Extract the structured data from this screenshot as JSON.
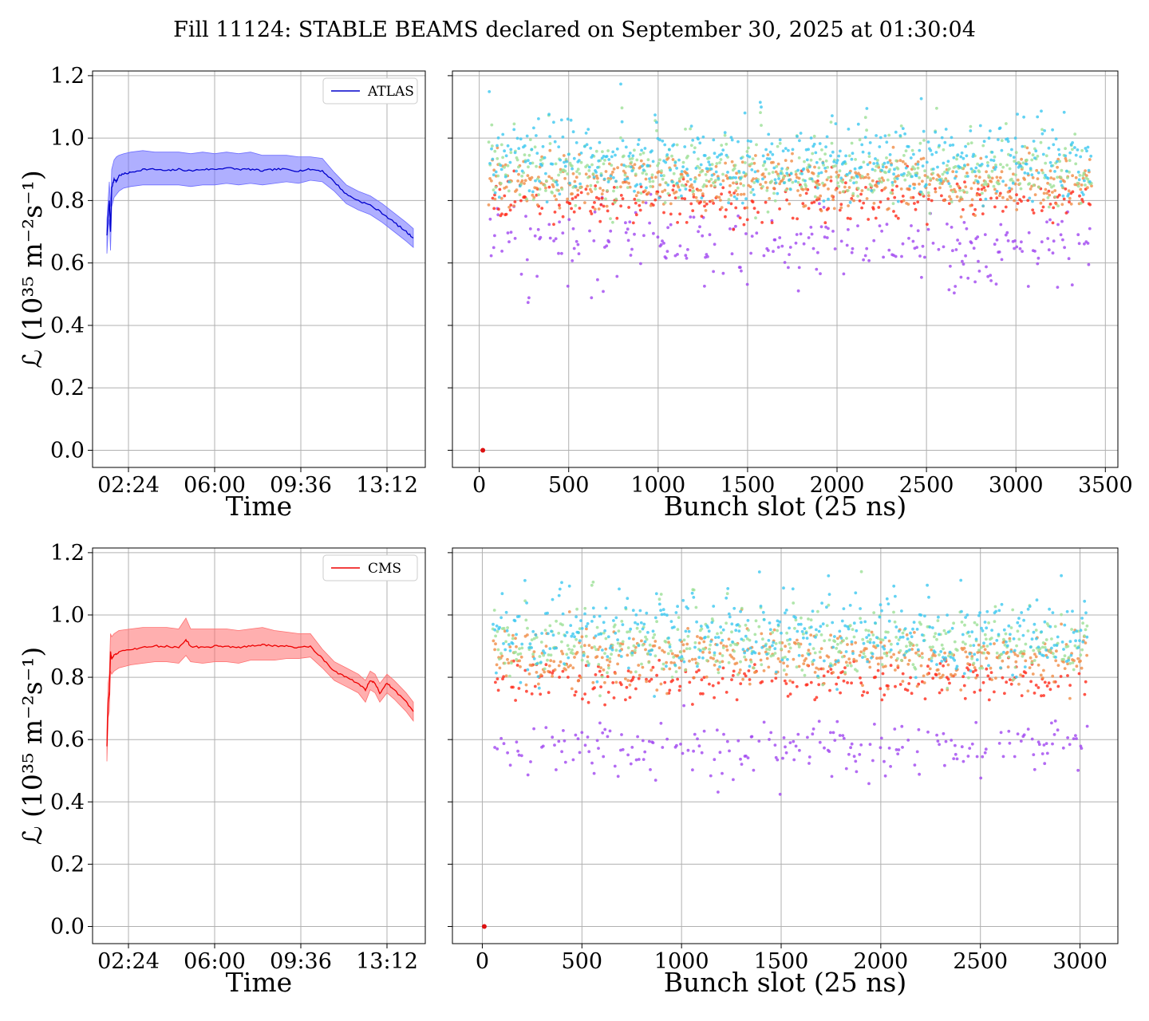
{
  "title": "Fill 11124: STABLE BEAMS declared on September 30, 2025 at 01:30:04",
  "colors": {
    "atlas_line": "#0000cc",
    "atlas_band": "#6e6eff",
    "cms_line": "#ee0000",
    "cms_band": "#ff6e6e",
    "grid": "#b0b0b0"
  },
  "chart_data": [
    {
      "id": "atlas-time",
      "type": "line",
      "xlabel": "Time",
      "ylabel": "ℒ (10³⁵ m⁻²s⁻¹)",
      "x_unit": "hours of day",
      "xlim": [
        0.9,
        14.8
      ],
      "ylim": [
        -0.055,
        1.215
      ],
      "xticks": [
        2.4,
        6.0,
        9.6,
        13.2
      ],
      "xticklabels": [
        "02:24",
        "06:00",
        "09:36",
        "13:12"
      ],
      "yticks": [
        0.0,
        0.2,
        0.4,
        0.6,
        0.8,
        1.0,
        1.2
      ],
      "yticklabels": [
        "0.0",
        "0.2",
        "0.4",
        "0.6",
        "0.8",
        "1.0",
        "1.2"
      ],
      "grid": true,
      "legend": "top-right",
      "series": [
        {
          "name": "ATLAS",
          "x": [
            1.5,
            1.55,
            1.6,
            1.65,
            1.7,
            1.8,
            1.9,
            2.0,
            2.2,
            2.5,
            3.0,
            3.5,
            4.0,
            4.5,
            5.0,
            5.5,
            6.0,
            6.5,
            7.0,
            7.5,
            8.0,
            8.5,
            9.0,
            9.5,
            10.0,
            10.5,
            11.0,
            11.5,
            12.0,
            12.5,
            13.0,
            13.5,
            14.0,
            14.3
          ],
          "y": [
            0.69,
            0.75,
            0.8,
            0.7,
            0.84,
            0.87,
            0.86,
            0.88,
            0.885,
            0.89,
            0.9,
            0.9,
            0.895,
            0.9,
            0.895,
            0.9,
            0.9,
            0.905,
            0.9,
            0.9,
            0.895,
            0.9,
            0.9,
            0.895,
            0.9,
            0.895,
            0.86,
            0.82,
            0.8,
            0.785,
            0.76,
            0.73,
            0.7,
            0.68
          ],
          "band_low": [
            0.63,
            0.7,
            0.74,
            0.64,
            0.78,
            0.81,
            0.82,
            0.83,
            0.84,
            0.845,
            0.85,
            0.85,
            0.85,
            0.85,
            0.845,
            0.85,
            0.85,
            0.855,
            0.85,
            0.855,
            0.85,
            0.855,
            0.86,
            0.855,
            0.865,
            0.86,
            0.83,
            0.79,
            0.77,
            0.755,
            0.73,
            0.7,
            0.67,
            0.65
          ],
          "band_high": [
            0.74,
            0.8,
            0.86,
            0.78,
            0.9,
            0.93,
            0.94,
            0.945,
            0.95,
            0.955,
            0.96,
            0.955,
            0.955,
            0.955,
            0.95,
            0.955,
            0.95,
            0.955,
            0.95,
            0.955,
            0.945,
            0.945,
            0.945,
            0.94,
            0.94,
            0.935,
            0.89,
            0.85,
            0.83,
            0.815,
            0.79,
            0.76,
            0.73,
            0.71
          ]
        }
      ]
    },
    {
      "id": "atlas-bunch",
      "type": "scatter",
      "xlabel": "Bunch slot (25 ns)",
      "xlim": [
        -150,
        3570
      ],
      "ylim": [
        -0.055,
        1.215
      ],
      "xticks": [
        0,
        500,
        1000,
        1500,
        2000,
        2500,
        3000,
        3500
      ],
      "xticklabels": [
        "0",
        "500",
        "1000",
        "1500",
        "2000",
        "2500",
        "3000",
        "3500"
      ],
      "yticks": [
        0.0,
        0.2,
        0.4,
        0.6,
        0.8,
        1.0,
        1.2
      ],
      "grid": true,
      "first_slot": 55,
      "last_slot": 3425,
      "train_starts": [
        55,
        195,
        390,
        590,
        790,
        985,
        1180,
        1375,
        1570,
        1770,
        1965,
        2160,
        2355,
        2550,
        2745,
        2945,
        3140,
        3330
      ],
      "levels": [
        {
          "color": "#a046f0",
          "center": 0.66,
          "spread": 0.05,
          "outliers_low": 0.47
        },
        {
          "color": "#ff2a1a",
          "center": 0.8,
          "spread": 0.035
        },
        {
          "color": "#f08c46",
          "center": 0.86,
          "spread": 0.045
        },
        {
          "color": "#9ce096",
          "center": 0.89,
          "spread": 0.05
        },
        {
          "color": "#3cc8f0",
          "center": 0.92,
          "spread": 0.06
        }
      ],
      "zero_point": {
        "x": 20,
        "y": 0.0
      }
    },
    {
      "id": "cms-time",
      "type": "line",
      "xlabel": "Time",
      "ylabel": "ℒ (10³⁵ m⁻²s⁻¹)",
      "x_unit": "hours of day",
      "xlim": [
        0.9,
        14.8
      ],
      "ylim": [
        -0.055,
        1.215
      ],
      "xticks": [
        2.4,
        6.0,
        9.6,
        13.2
      ],
      "xticklabels": [
        "02:24",
        "06:00",
        "09:36",
        "13:12"
      ],
      "yticks": [
        0.0,
        0.2,
        0.4,
        0.6,
        0.8,
        1.0,
        1.2
      ],
      "yticklabels": [
        "0.0",
        "0.2",
        "0.4",
        "0.6",
        "0.8",
        "1.0",
        "1.2"
      ],
      "grid": true,
      "legend": "top-right",
      "series": [
        {
          "name": "CMS",
          "x": [
            1.5,
            1.55,
            1.6,
            1.65,
            1.7,
            1.8,
            2.0,
            2.5,
            3.0,
            3.5,
            4.0,
            4.5,
            4.8,
            5.0,
            5.5,
            6.0,
            6.5,
            7.0,
            7.5,
            8.0,
            8.5,
            9.0,
            9.5,
            10.0,
            10.5,
            11.0,
            11.5,
            12.0,
            12.3,
            12.5,
            12.7,
            12.9,
            13.2,
            13.5,
            14.0,
            14.3
          ],
          "y": [
            0.58,
            0.72,
            0.75,
            0.88,
            0.86,
            0.87,
            0.88,
            0.89,
            0.895,
            0.9,
            0.9,
            0.895,
            0.92,
            0.9,
            0.895,
            0.9,
            0.9,
            0.895,
            0.9,
            0.905,
            0.9,
            0.9,
            0.895,
            0.9,
            0.86,
            0.82,
            0.8,
            0.78,
            0.76,
            0.79,
            0.78,
            0.75,
            0.78,
            0.76,
            0.72,
            0.69
          ],
          "band_low": [
            0.53,
            0.67,
            0.69,
            0.82,
            0.81,
            0.82,
            0.83,
            0.84,
            0.845,
            0.85,
            0.85,
            0.845,
            0.87,
            0.85,
            0.845,
            0.85,
            0.85,
            0.845,
            0.855,
            0.855,
            0.855,
            0.86,
            0.86,
            0.865,
            0.83,
            0.79,
            0.77,
            0.75,
            0.72,
            0.76,
            0.75,
            0.72,
            0.75,
            0.73,
            0.69,
            0.66
          ],
          "band_high": [
            0.63,
            0.78,
            0.81,
            0.94,
            0.93,
            0.94,
            0.95,
            0.955,
            0.96,
            0.96,
            0.96,
            0.955,
            0.99,
            0.955,
            0.955,
            0.955,
            0.955,
            0.95,
            0.955,
            0.96,
            0.95,
            0.945,
            0.94,
            0.94,
            0.89,
            0.85,
            0.83,
            0.81,
            0.79,
            0.82,
            0.81,
            0.78,
            0.81,
            0.79,
            0.75,
            0.72
          ]
        }
      ]
    },
    {
      "id": "cms-bunch",
      "type": "scatter",
      "xlabel": "Bunch slot (25 ns)",
      "xlim": [
        -150,
        3190
      ],
      "ylim": [
        -0.055,
        1.215
      ],
      "xticks": [
        0,
        500,
        1000,
        1500,
        2000,
        2500,
        3000
      ],
      "xticklabels": [
        "0",
        "500",
        "1000",
        "1500",
        "2000",
        "2500",
        "3000"
      ],
      "yticks": [
        0.0,
        0.2,
        0.4,
        0.6,
        0.8,
        1.0,
        1.2
      ],
      "grid": true,
      "first_slot": 55,
      "last_slot": 3035,
      "train_starts": [
        55,
        215,
        385,
        550,
        720,
        890,
        1055,
        1225,
        1390,
        1560,
        1730,
        1895,
        2065,
        2235,
        2400,
        2570,
        2740,
        2905
      ],
      "levels": [
        {
          "color": "#a046f0",
          "center": 0.58,
          "spread": 0.04,
          "outliers_low": 0.42
        },
        {
          "color": "#ff2a1a",
          "center": 0.79,
          "spread": 0.035
        },
        {
          "color": "#f08c46",
          "center": 0.86,
          "spread": 0.045
        },
        {
          "color": "#9ce096",
          "center": 0.9,
          "spread": 0.05
        },
        {
          "color": "#3cc8f0",
          "center": 0.93,
          "spread": 0.06
        }
      ],
      "zero_point": {
        "x": 10,
        "y": 0.0
      }
    }
  ]
}
